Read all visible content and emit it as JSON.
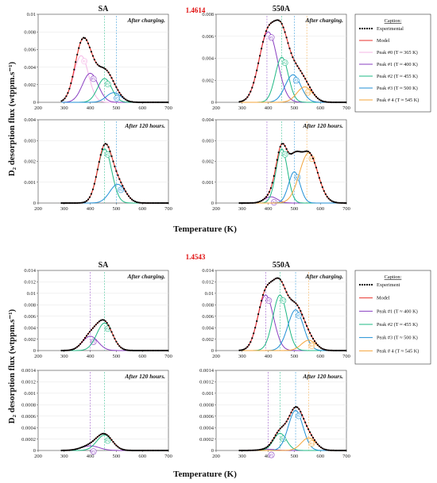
{
  "figure": {
    "top_id": "1.4614",
    "bottom_id": "1.4543",
    "y_axis_label": "D₂ desorption flux (wtppm.s⁻¹)",
    "x_axis_label": "Temperature (K)"
  },
  "legends": [
    {
      "title": "Caption:",
      "items": [
        {
          "label": "Experimental",
          "color": "#000000",
          "style": "dotted"
        },
        {
          "label": "Model",
          "color": "#e8322b",
          "style": "solid"
        },
        {
          "label": "Peak #0 (T ≈ 365 K)",
          "color": "#f4b6e6",
          "style": "solid"
        },
        {
          "label": "Peak #1 (T ≈ 400 K)",
          "color": "#8a3fc1",
          "style": "solid"
        },
        {
          "label": "Peak #2 (T ≈ 455 K)",
          "color": "#1fb884",
          "style": "solid"
        },
        {
          "label": "Peak #3 (T ≈ 500 K)",
          "color": "#1f8fd6",
          "style": "solid"
        },
        {
          "label": "Peak # 4 (T ≈ 545 K)",
          "color": "#f4a53a",
          "style": "solid"
        }
      ]
    },
    {
      "title": "Caption:",
      "items": [
        {
          "label": "Experiment",
          "color": "#000000",
          "style": "dotted"
        },
        {
          "label": "Model",
          "color": "#e8322b",
          "style": "solid"
        },
        {
          "label": "Peak #1 (T ≈ 400 K)",
          "color": "#8a3fc1",
          "style": "solid"
        },
        {
          "label": "Peak #2 (T ≈ 455 K)",
          "color": "#1fb884",
          "style": "solid"
        },
        {
          "label": "Peak #3 (T ≈ 500 K)",
          "color": "#1f8fd6",
          "style": "solid"
        },
        {
          "label": "Peak # 4 (T ≈ 545 K)",
          "color": "#f4a53a",
          "style": "solid"
        }
      ]
    }
  ],
  "chart_data": [
    {
      "type": "line",
      "title": "SA",
      "annotation": "After charging.",
      "xlim": [
        200,
        700
      ],
      "ylim": [
        0,
        0.01
      ],
      "xticks": [
        "200",
        "300",
        "400",
        "500",
        "600",
        "700"
      ],
      "yticks": [
        "0",
        "0.002",
        "0.004",
        "0.006",
        "0.008",
        "0.01"
      ],
      "peaks": [
        {
          "id": "0",
          "center": 365,
          "amplitude": 0.0053,
          "width": 28
        },
        {
          "id": "1",
          "center": 400,
          "amplitude": 0.0033,
          "width": 30
        },
        {
          "id": "2",
          "center": 455,
          "amplitude": 0.0027,
          "width": 27
        },
        {
          "id": "3",
          "center": 490,
          "amplitude": 0.0011,
          "width": 28
        }
      ],
      "vlines": [
        455,
        500
      ]
    },
    {
      "type": "line",
      "title": "550A",
      "annotation": "After charging.",
      "xlim": [
        200,
        700
      ],
      "ylim": [
        0,
        0.008
      ],
      "xticks": [
        "200",
        "300",
        "400",
        "500",
        "600",
        "700"
      ],
      "yticks": [
        "0",
        "0.002",
        "0.004",
        "0.006",
        "0.008"
      ],
      "peaks": [
        {
          "id": "1",
          "center": 400,
          "amplitude": 0.0064,
          "width": 35
        },
        {
          "id": "2",
          "center": 452,
          "amplitude": 0.0041,
          "width": 25
        },
        {
          "id": "3",
          "center": 495,
          "amplitude": 0.0025,
          "width": 30
        },
        {
          "id": "4",
          "center": 540,
          "amplitude": 0.0014,
          "width": 30
        }
      ],
      "vlines": [
        395,
        452,
        500,
        548
      ]
    },
    {
      "type": "line",
      "title": "",
      "annotation": "After 120 hours.",
      "xlim": [
        200,
        700
      ],
      "ylim": [
        0,
        0.004
      ],
      "xticks": [
        "200",
        "300",
        "400",
        "500",
        "600",
        "700"
      ],
      "yticks": [
        "0",
        "0.001",
        "0.002",
        "0.003",
        "0.004"
      ],
      "peaks": [
        {
          "id": "2",
          "center": 455,
          "amplitude": 0.0026,
          "width": 27
        },
        {
          "id": "3",
          "center": 505,
          "amplitude": 0.0009,
          "width": 30
        }
      ],
      "vlines": [
        455,
        500
      ]
    },
    {
      "type": "line",
      "title": "",
      "annotation": "After 120 hours.",
      "xlim": [
        200,
        700
      ],
      "ylim": [
        0,
        0.004
      ],
      "xticks": [
        "200",
        "300",
        "400",
        "500",
        "600",
        "700"
      ],
      "yticks": [
        "0",
        "0.001",
        "0.002",
        "0.003",
        "0.004"
      ],
      "peaks": [
        {
          "id": "1",
          "center": 410,
          "amplitude": 0.0003,
          "width": 25
        },
        {
          "id": "2",
          "center": 452,
          "amplitude": 0.0026,
          "width": 22
        },
        {
          "id": "3",
          "center": 500,
          "amplitude": 0.0015,
          "width": 22
        },
        {
          "id": "4",
          "center": 555,
          "amplitude": 0.0024,
          "width": 35
        }
      ],
      "vlines": [
        395,
        452,
        500,
        548
      ]
    },
    {
      "type": "line",
      "title": "SA",
      "annotation": "After charging.",
      "xlim": [
        200,
        700
      ],
      "ylim": [
        0,
        0.014
      ],
      "xticks": [
        "200",
        "300",
        "400",
        "500",
        "600",
        "700"
      ],
      "yticks": [
        "0",
        "0.002",
        "0.004",
        "0.006",
        "0.008",
        "0.01",
        "0.012",
        "0.014"
      ],
      "peaks": [
        {
          "id": "1",
          "center": 400,
          "amplitude": 0.0025,
          "width": 30
        },
        {
          "id": "2",
          "center": 455,
          "amplitude": 0.0048,
          "width": 30
        }
      ],
      "vlines": [
        400,
        455
      ]
    },
    {
      "type": "line",
      "title": "550A",
      "annotation": "After charging.",
      "xlim": [
        200,
        700
      ],
      "ylim": [
        0,
        0.014
      ],
      "xticks": [
        "200",
        "300",
        "400",
        "500",
        "600",
        "700"
      ],
      "yticks": [
        "0",
        "0.002",
        "0.004",
        "0.006",
        "0.008",
        "0.01",
        "0.012",
        "0.014"
      ],
      "peaks": [
        {
          "id": "1",
          "center": 390,
          "amplitude": 0.0097,
          "width": 30
        },
        {
          "id": "2",
          "center": 445,
          "amplitude": 0.0097,
          "width": 27
        },
        {
          "id": "3",
          "center": 505,
          "amplitude": 0.0071,
          "width": 30
        },
        {
          "id": "4",
          "center": 555,
          "amplitude": 0.0018,
          "width": 28
        }
      ],
      "vlines": [
        390,
        445,
        505,
        555
      ]
    },
    {
      "type": "line",
      "title": "",
      "annotation": "After 120 hours.",
      "xlim": [
        200,
        700
      ],
      "ylim": [
        0,
        0.0014
      ],
      "xticks": [
        "200",
        "300",
        "400",
        "500",
        "600",
        "700"
      ],
      "yticks": [
        "0",
        "0.0002",
        "0.0004",
        "0.0006",
        "0.0008",
        "0.001",
        "0.0012",
        "0.0014"
      ],
      "peaks": [
        {
          "id": "1",
          "center": 400,
          "amplitude": 8e-05,
          "width": 35
        },
        {
          "id": "2",
          "center": 455,
          "amplitude": 0.00027,
          "width": 30
        }
      ],
      "vlines": [
        400,
        455
      ]
    },
    {
      "type": "line",
      "title": "",
      "annotation": "After 120 hours.",
      "xlim": [
        200,
        700
      ],
      "ylim": [
        0,
        0.0014
      ],
      "xticks": [
        "200",
        "300",
        "400",
        "500",
        "600",
        "700"
      ],
      "yticks": [
        "0",
        "0.0002",
        "0.0004",
        "0.0006",
        "0.0008",
        "0.001",
        "0.0012",
        "0.0014"
      ],
      "peaks": [
        {
          "id": "1",
          "center": 400,
          "amplitude": 2e-05,
          "width": 30
        },
        {
          "id": "2",
          "center": 445,
          "amplitude": 0.0003,
          "width": 25
        },
        {
          "id": "3",
          "center": 505,
          "amplitude": 0.0007,
          "width": 28
        },
        {
          "id": "4",
          "center": 555,
          "amplitude": 0.00022,
          "width": 28
        }
      ],
      "vlines": [
        400,
        445,
        505,
        555
      ]
    }
  ]
}
